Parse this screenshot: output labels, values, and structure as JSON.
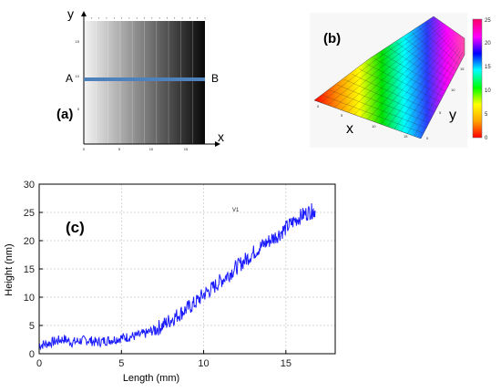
{
  "chart_data": [
    {
      "panel": "(a)",
      "type": "heatmap",
      "description_kind": "linear grayscale gradient along x",
      "axis_x_label": "x",
      "axis_y_label": "y",
      "x_ticks": [
        "0",
        "5",
        "10",
        "15"
      ],
      "y_ticks": [
        "5",
        "10",
        "15"
      ],
      "xlim": [
        0,
        17
      ],
      "ylim": [
        0,
        17
      ],
      "profile_line": {
        "start_label": "A",
        "end_label": "B",
        "y": 10
      },
      "colors": {
        "light": "#f4f4f4",
        "dark": "#080808",
        "profile_line": "#4f81bd"
      }
    },
    {
      "panel": "(b)",
      "type": "surface",
      "axis_x_label": "x",
      "axis_y_label": "y",
      "x_ticks": [
        "0",
        "5",
        "10",
        "15"
      ],
      "y_ticks": [
        "0",
        "5",
        "10",
        "15"
      ],
      "colorbar_ticks": [
        "0",
        "5",
        "10",
        "15",
        "20",
        "25"
      ],
      "zlim": [
        0,
        25
      ],
      "colormap": [
        "#ff0000",
        "#ffa500",
        "#ffff00",
        "#00ff00",
        "#00ffff",
        "#0000ff",
        "#ff00ff",
        "#ff0066"
      ]
    },
    {
      "panel": "(c)",
      "type": "line",
      "xlabel": "Length (mm)",
      "ylabel": "Height (nm)",
      "xlim": [
        0,
        18
      ],
      "ylim": [
        0,
        30
      ],
      "x_ticks": [
        0,
        5,
        10,
        15
      ],
      "y_ticks": [
        0,
        5,
        10,
        15,
        20,
        25,
        30
      ],
      "grid": true,
      "end_label": "V1",
      "series": [
        {
          "color": "#1a1aff",
          "x": [
            0,
            0.5,
            1,
            1.5,
            2,
            2.5,
            3,
            3.5,
            4,
            4.5,
            5,
            5.5,
            6,
            6.5,
            7,
            7.5,
            8,
            8.5,
            9,
            9.5,
            10,
            10.5,
            11,
            11.5,
            12,
            12.5,
            13,
            13.5,
            14,
            14.5,
            15,
            15.5,
            16,
            16.5,
            16.8
          ],
          "y": [
            1.5,
            1.8,
            2.2,
            2.6,
            2.0,
            2.3,
            2.4,
            2.0,
            2.3,
            2.5,
            2.8,
            3.0,
            3.2,
            3.6,
            4.2,
            5.0,
            6.0,
            7.0,
            8.0,
            9.0,
            10.5,
            11.5,
            12.8,
            14.0,
            15.3,
            16.5,
            17.8,
            19.0,
            20.0,
            21.0,
            22.2,
            23.5,
            24.5,
            25.2,
            25.3
          ]
        }
      ]
    }
  ]
}
